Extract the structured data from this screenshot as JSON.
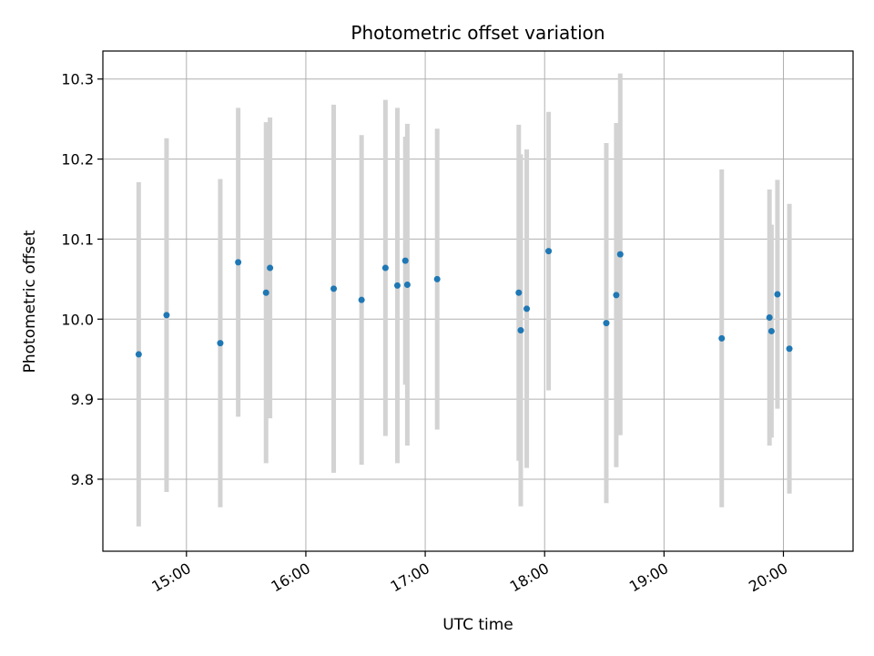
{
  "chart_data": {
    "type": "scatter",
    "title": "Photometric offset variation",
    "xlabel": "UTC time",
    "ylabel": "Photometric offset",
    "grid": true,
    "x_axis_type": "time",
    "xlim": [
      "14:18",
      "20:35"
    ],
    "ylim": [
      9.71,
      10.335
    ],
    "x_ticks": [
      "15:00",
      "16:00",
      "17:00",
      "18:00",
      "19:00",
      "20:00"
    ],
    "y_ticks": [
      9.8,
      9.9,
      10.0,
      10.1,
      10.2,
      10.3
    ],
    "colors": {
      "point": "#1f77b4",
      "errorbar": "#d3d3d3",
      "grid": "#b0b0b0"
    },
    "points": [
      {
        "x": "14:36",
        "y": 9.956,
        "yerr": 0.215
      },
      {
        "x": "14:50",
        "y": 10.005,
        "yerr": 0.221
      },
      {
        "x": "15:17",
        "y": 9.97,
        "yerr": 0.205
      },
      {
        "x": "15:26",
        "y": 10.071,
        "yerr": 0.193
      },
      {
        "x": "15:40",
        "y": 10.033,
        "yerr": 0.213
      },
      {
        "x": "15:42",
        "y": 10.064,
        "yerr": 0.188
      },
      {
        "x": "16:14",
        "y": 10.038,
        "yerr": 0.23
      },
      {
        "x": "16:28",
        "y": 10.024,
        "yerr": 0.206
      },
      {
        "x": "16:40",
        "y": 10.064,
        "yerr": 0.21
      },
      {
        "x": "16:46",
        "y": 10.042,
        "yerr": 0.222
      },
      {
        "x": "16:50",
        "y": 10.073,
        "yerr": 0.155
      },
      {
        "x": "16:51",
        "y": 10.043,
        "yerr": 0.201
      },
      {
        "x": "17:06",
        "y": 10.05,
        "yerr": 0.188
      },
      {
        "x": "17:47",
        "y": 10.033,
        "yerr": 0.21
      },
      {
        "x": "17:48",
        "y": 9.986,
        "yerr": 0.22
      },
      {
        "x": "17:51",
        "y": 10.013,
        "yerr": 0.199
      },
      {
        "x": "18:02",
        "y": 10.085,
        "yerr": 0.174
      },
      {
        "x": "18:31",
        "y": 9.995,
        "yerr": 0.225
      },
      {
        "x": "18:36",
        "y": 10.03,
        "yerr": 0.215
      },
      {
        "x": "18:38",
        "y": 10.081,
        "yerr": 0.226
      },
      {
        "x": "19:29",
        "y": 9.976,
        "yerr": 0.211
      },
      {
        "x": "19:53",
        "y": 10.002,
        "yerr": 0.16
      },
      {
        "x": "19:54",
        "y": 9.985,
        "yerr": 0.133
      },
      {
        "x": "19:57",
        "y": 10.031,
        "yerr": 0.143
      },
      {
        "x": "20:03",
        "y": 9.963,
        "yerr": 0.181
      }
    ]
  }
}
